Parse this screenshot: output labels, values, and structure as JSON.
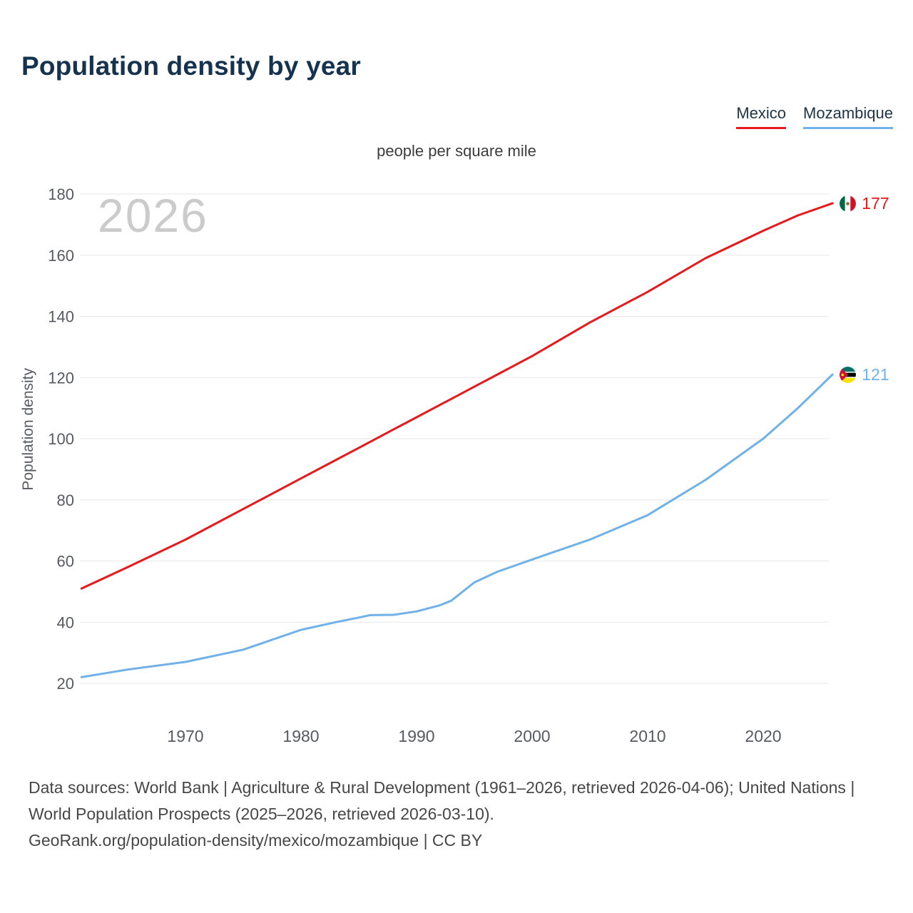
{
  "page": {
    "title": "Population density by year",
    "subtitle": "people per square mile",
    "watermark": "2026",
    "y_axis_label": "Population density"
  },
  "legend": [
    {
      "label": "Mexico",
      "color": "#e8191c"
    },
    {
      "label": "Mozambique",
      "color": "#6fb1e8"
    }
  ],
  "end_labels": [
    {
      "series": "Mexico",
      "value": "177",
      "icon": "mexico-flag-icon",
      "color": "#e8191c"
    },
    {
      "series": "Mozambique",
      "value": "121",
      "icon": "mozambique-flag-icon",
      "color": "#6fb1e8"
    }
  ],
  "footer": {
    "line1": "Data sources: World Bank | Agriculture & Rural Development (1961–2026, retrieved 2026-04-06); United Nations | World Population Prospects (2025–2026, retrieved 2026-03-10).",
    "line2": "GeoRank.org/population-density/mexico/mozambique | CC BY"
  },
  "chart_data": {
    "type": "line",
    "title": "Population density by year",
    "subtitle": "people per square mile",
    "xlabel": "",
    "ylabel": "Population density",
    "watermark": "2026",
    "grid": "horizontal",
    "legend_position": "top-right",
    "xlim": [
      1961,
      2026
    ],
    "ylim": [
      10,
      185
    ],
    "yticks": [
      20,
      40,
      60,
      80,
      100,
      120,
      140,
      160,
      180
    ],
    "xticks": [
      1970,
      1980,
      1990,
      2000,
      2010,
      2020
    ],
    "x": [
      1961,
      1965,
      1970,
      1975,
      1980,
      1983,
      1985,
      1986,
      1988,
      1990,
      1992,
      1993,
      1995,
      1997,
      2000,
      2005,
      2010,
      2015,
      2020,
      2023,
      2026
    ],
    "series": [
      {
        "name": "Mexico",
        "color": "#e8191c",
        "values": [
          51,
          58,
          67,
          77,
          87,
          93,
          97,
          99,
          103,
          107,
          111,
          113,
          117,
          121,
          127,
          138,
          148,
          159,
          168,
          173,
          177
        ],
        "end_label": 177
      },
      {
        "name": "Mozambique",
        "color": "#6fb1e8",
        "values": [
          22,
          24.5,
          27,
          31,
          37.5,
          40,
          41.5,
          42.3,
          42.4,
          43.5,
          45.5,
          47,
          53,
          56.5,
          60.5,
          67,
          75,
          86.5,
          100,
          110,
          121
        ],
        "end_label": 121
      }
    ]
  }
}
